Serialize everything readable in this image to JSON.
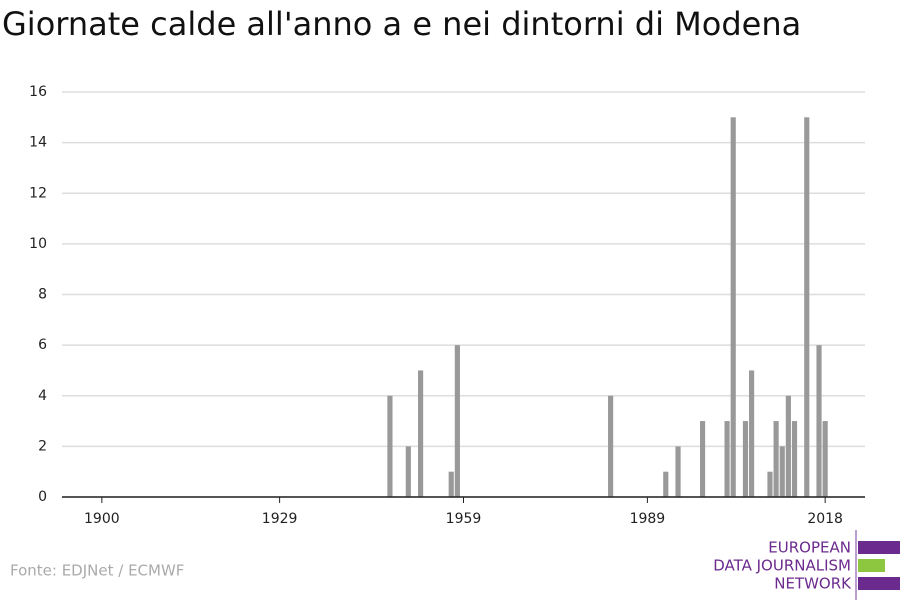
{
  "chart_data": {
    "type": "bar",
    "title": "Giornate calde all'anno a e nei dintorni di Modena",
    "source": "Fonte: EDJNet / ECMWF",
    "logo": [
      "EUROPEAN",
      "DATA JOURNALISM",
      "NETWORK"
    ],
    "x": [
      1947,
      1950,
      1952,
      1957,
      1958,
      1983,
      1992,
      1994,
      1998,
      2002,
      2003,
      2005,
      2006,
      2009,
      2010,
      2011,
      2012,
      2013,
      2015,
      2017,
      2018
    ],
    "values": [
      4,
      2,
      5,
      1,
      6,
      4,
      1,
      2,
      3,
      3,
      15,
      3,
      5,
      1,
      3,
      2,
      4,
      3,
      15,
      6,
      3
    ],
    "color": "#999999",
    "xlim": [
      1893.5,
      2024.5
    ],
    "xticks": [
      1900,
      1929,
      1959,
      1989,
      2018
    ],
    "ylim": [
      0,
      16
    ],
    "yticks": [
      0,
      2,
      4,
      6,
      8,
      10,
      12,
      14,
      16
    ],
    "grid": true
  }
}
